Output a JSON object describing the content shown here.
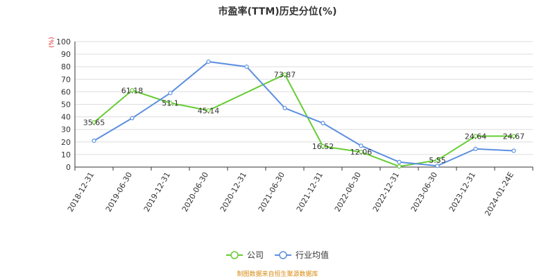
{
  "chart_data": {
    "type": "line",
    "title": "市盈率(TTM)历史分位(%)",
    "ylabel": "(%)",
    "ylim": [
      0,
      100
    ],
    "yticks": [
      0,
      10,
      20,
      30,
      40,
      50,
      60,
      70,
      80,
      90,
      100
    ],
    "categories": [
      "2018-12-31",
      "2019-06-30",
      "2019-12-31",
      "2020-06-30",
      "2020-12-31",
      "2021-06-30",
      "2021-12-31",
      "2022-06-30",
      "2022-12-31",
      "2023-06-30",
      "2023-12-31",
      "2024-01-24E"
    ],
    "grid": true,
    "legend_position": "bottom",
    "series": [
      {
        "name": "公司",
        "color": "#66cc33",
        "values": [
          35.65,
          61.18,
          51.1,
          45.14,
          null,
          73.87,
          16.52,
          12.06,
          0.5,
          5.55,
          24.64,
          24.67
        ],
        "labels": [
          "35.65",
          "61.18",
          "51.1",
          "45.14",
          "",
          "73.87",
          "16.52",
          "12.06",
          "",
          "5.55",
          "24.64",
          "24.67"
        ]
      },
      {
        "name": "行业均值",
        "color": "#5b8fe0",
        "values": [
          21,
          39,
          59,
          84,
          80,
          47,
          35,
          17,
          4,
          1,
          14.5,
          13
        ],
        "labels": []
      }
    ]
  },
  "source": "制图数据来自恒生聚源数据库"
}
